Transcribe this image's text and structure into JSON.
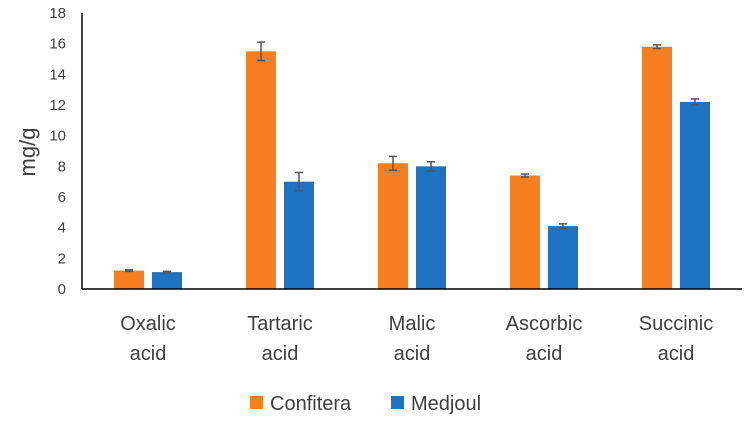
{
  "chart_data": {
    "type": "bar",
    "title": "",
    "xlabel": "",
    "ylabel": "mg/g",
    "ylim": [
      0,
      18
    ],
    "yticks": [
      "0",
      "2",
      "4",
      "6",
      "8",
      "10",
      "12",
      "14",
      "16",
      "18"
    ],
    "grid": false,
    "legend_position": "bottom",
    "categories": [
      [
        "Oxalic",
        "acid"
      ],
      [
        "Tartaric",
        "acid"
      ],
      [
        "Malic",
        "acid"
      ],
      [
        "Ascorbic",
        "acid"
      ],
      [
        "Succinic",
        "acid"
      ]
    ],
    "series": [
      {
        "name": "Confitera",
        "color": "#F77F20",
        "values": [
          1.2,
          15.5,
          8.2,
          7.4,
          15.8
        ],
        "errors": [
          0.05,
          0.6,
          0.45,
          0.1,
          0.12
        ]
      },
      {
        "name": "Medjoul",
        "color": "#1E72C2",
        "values": [
          1.1,
          7.0,
          8.0,
          4.1,
          12.2
        ],
        "errors": [
          0.05,
          0.6,
          0.3,
          0.15,
          0.2
        ]
      }
    ]
  }
}
